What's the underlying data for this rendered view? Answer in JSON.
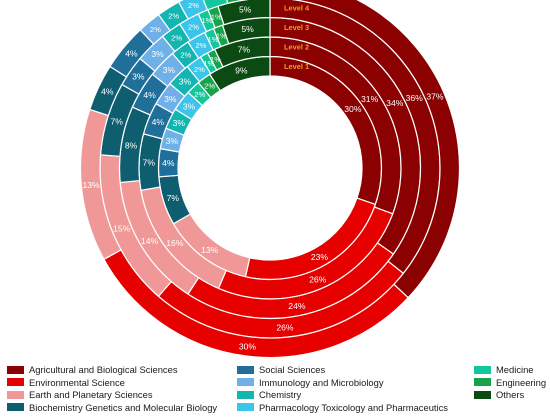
{
  "chart_data": {
    "type": "pie",
    "subtype": "multi-level donut (concentric rings, Level 1 innermost to Level 5 outermost)",
    "title": "",
    "categories": [
      "Agricultural and Biological Sciences",
      "Environmental Science",
      "Earth and Planetary Sciences",
      "Biochemistry  Genetics and Molecular Biology",
      "Social Sciences",
      "Immunology and Microbiology",
      "Chemistry",
      "Pharmacology  Toxicology and Pharmaceutics",
      "Medicine",
      "Engineering",
      "Others"
    ],
    "colors": [
      "#8b0000",
      "#e60000",
      "#f09898",
      "#0f5e70",
      "#1f6f9a",
      "#6fb0e8",
      "#12b5b0",
      "#3cc4ea",
      "#12c79a",
      "#17a34a",
      "#0b4a12"
    ],
    "series": [
      {
        "name": "Level 1",
        "values": [
          30,
          23,
          13,
          7,
          4,
          3,
          3,
          3,
          2,
          2,
          9
        ]
      },
      {
        "name": "Level 2",
        "values": [
          31,
          26,
          16,
          7,
          4,
          3,
          3,
          2,
          1,
          1,
          7
        ]
      },
      {
        "name": "Level 3",
        "values": [
          34,
          24,
          14,
          8,
          4,
          3,
          2,
          2,
          1,
          1,
          5
        ]
      },
      {
        "name": "Level 4",
        "values": [
          36,
          26,
          15,
          7,
          3,
          3,
          2,
          2,
          1,
          1,
          5
        ]
      },
      {
        "name": "Level 5",
        "values": [
          37,
          30,
          13,
          4,
          4,
          2,
          2,
          2,
          2,
          2,
          2
        ]
      }
    ],
    "label_suffix": "%",
    "legend_position": "bottom",
    "direction": "clockwise from top"
  }
}
